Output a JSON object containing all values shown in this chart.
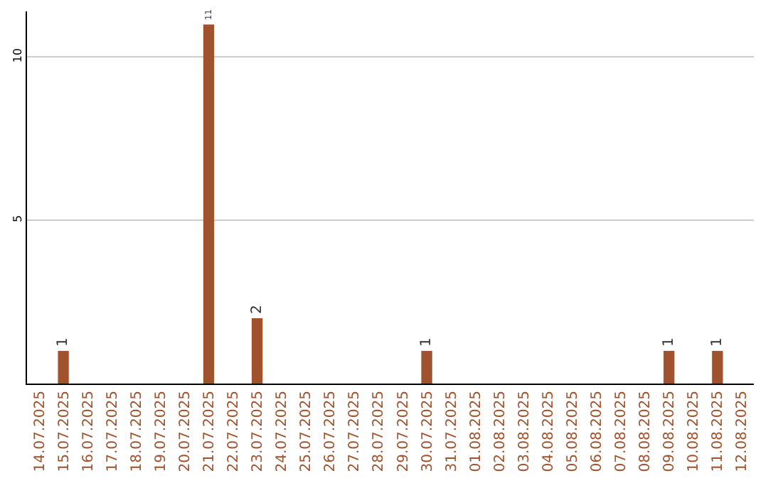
{
  "chart_data": {
    "type": "bar",
    "categories": [
      "14.07.2025",
      "15.07.2025",
      "16.07.2025",
      "17.07.2025",
      "18.07.2025",
      "19.07.2025",
      "20.07.2025",
      "21.07.2025",
      "22.07.2025",
      "23.07.2025",
      "24.07.2025",
      "25.07.2025",
      "26.07.2025",
      "27.07.2025",
      "28.07.2025",
      "29.07.2025",
      "30.07.2025",
      "31.07.2025",
      "01.08.2025",
      "02.08.2025",
      "03.08.2025",
      "04.08.2025",
      "05.08.2025",
      "06.08.2025",
      "07.08.2025",
      "08.08.2025",
      "09.08.2025",
      "10.08.2025",
      "11.08.2025",
      "12.08.2025"
    ],
    "values": [
      0,
      1,
      0,
      0,
      0,
      0,
      0,
      11,
      0,
      2,
      0,
      0,
      0,
      0,
      0,
      0,
      1,
      0,
      0,
      0,
      0,
      0,
      0,
      0,
      0,
      0,
      1,
      0,
      1,
      0
    ],
    "value_labels": [
      null,
      "1",
      null,
      null,
      null,
      null,
      null,
      "11",
      null,
      "2",
      null,
      null,
      null,
      null,
      null,
      null,
      "1",
      null,
      null,
      null,
      null,
      null,
      null,
      null,
      null,
      null,
      "1",
      null,
      "1",
      null
    ],
    "color": "#a0522d",
    "ylim": [
      0,
      11.4
    ],
    "yticks": [
      5,
      10
    ],
    "grid": "y",
    "legend": false
  }
}
